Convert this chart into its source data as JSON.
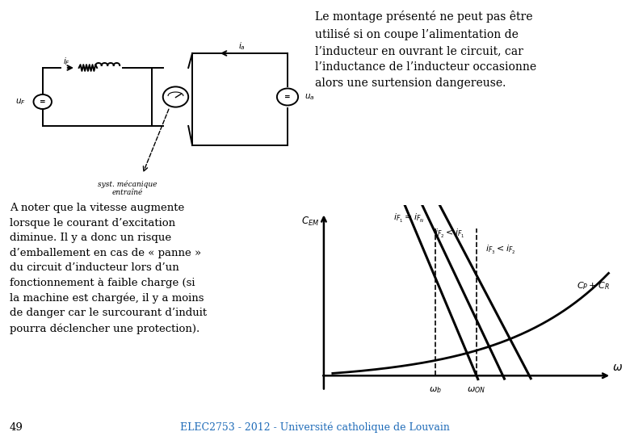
{
  "background_color": "#ffffff",
  "title_text": "Le montage présenté ne peut pas être\nutilisé si on coupe l’alimentation de\nl’inducteur en ouvrant le circuit, car\nl’inductance de l’inducteur occasionne\nalors une surtension dangereuse.",
  "body_text": "A noter que la vitesse augmente\nlorsque le courant d’excitation\ndiminue. Il y a donc un risque\nd’emballement en cas de « panne »\ndu circuit d’inducteur lors d’un\nfonctionnement à faible charge (si\nla machine est chargée, il y a moins\nde danger car le surcourant d’induit\npourra déclencher une protection).",
  "footer_text": "ELEC2753 - 2012 - Université catholique de Louvain",
  "page_number": "49",
  "line_color": "#000000",
  "footer_color": "#1e6bb8",
  "text_color": "#000000",
  "font_size_body": 9.5,
  "font_size_title": 10.0,
  "font_size_footer": 9
}
